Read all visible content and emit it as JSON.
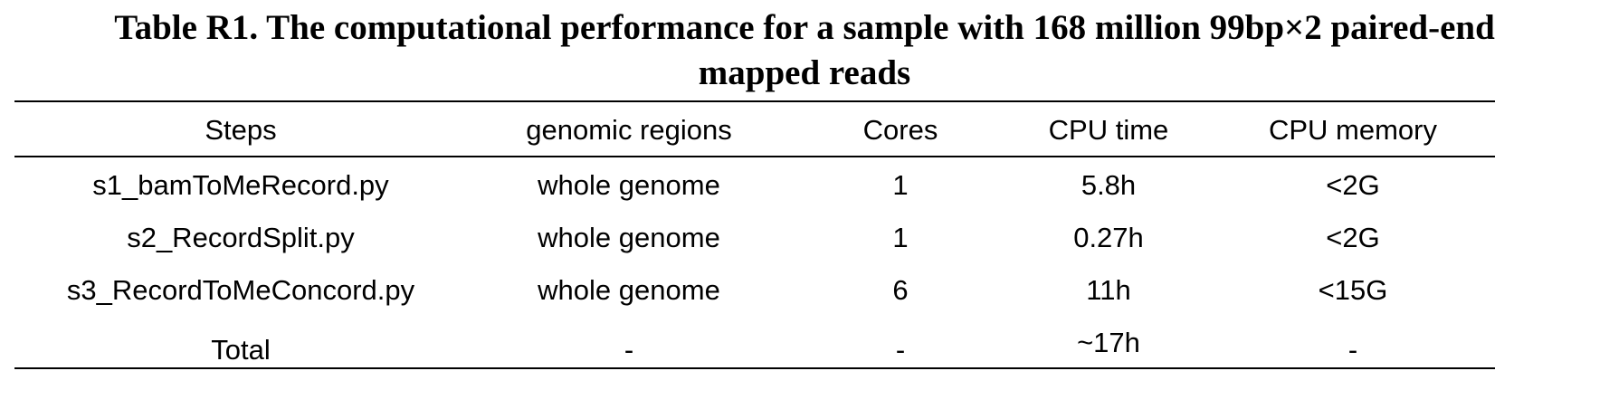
{
  "caption": {
    "line1": "Table R1. The computational performance for a sample with 168 million 99bp×2 paired-end",
    "line2": "mapped reads"
  },
  "table": {
    "headers": [
      "Steps",
      "genomic regions",
      "Cores",
      "CPU time",
      "CPU memory"
    ],
    "rows": [
      [
        "s1_bamToMeRecord.py",
        "whole genome",
        "1",
        "5.8h",
        "<2G"
      ],
      [
        "s2_RecordSplit.py",
        "whole genome",
        "1",
        "0.27h",
        "<2G"
      ],
      [
        "s3_RecordToMeConcord.py",
        "whole genome",
        "6",
        "11h",
        "<15G"
      ],
      [
        "Total",
        "-",
        "-",
        "~17h",
        "-"
      ]
    ]
  }
}
